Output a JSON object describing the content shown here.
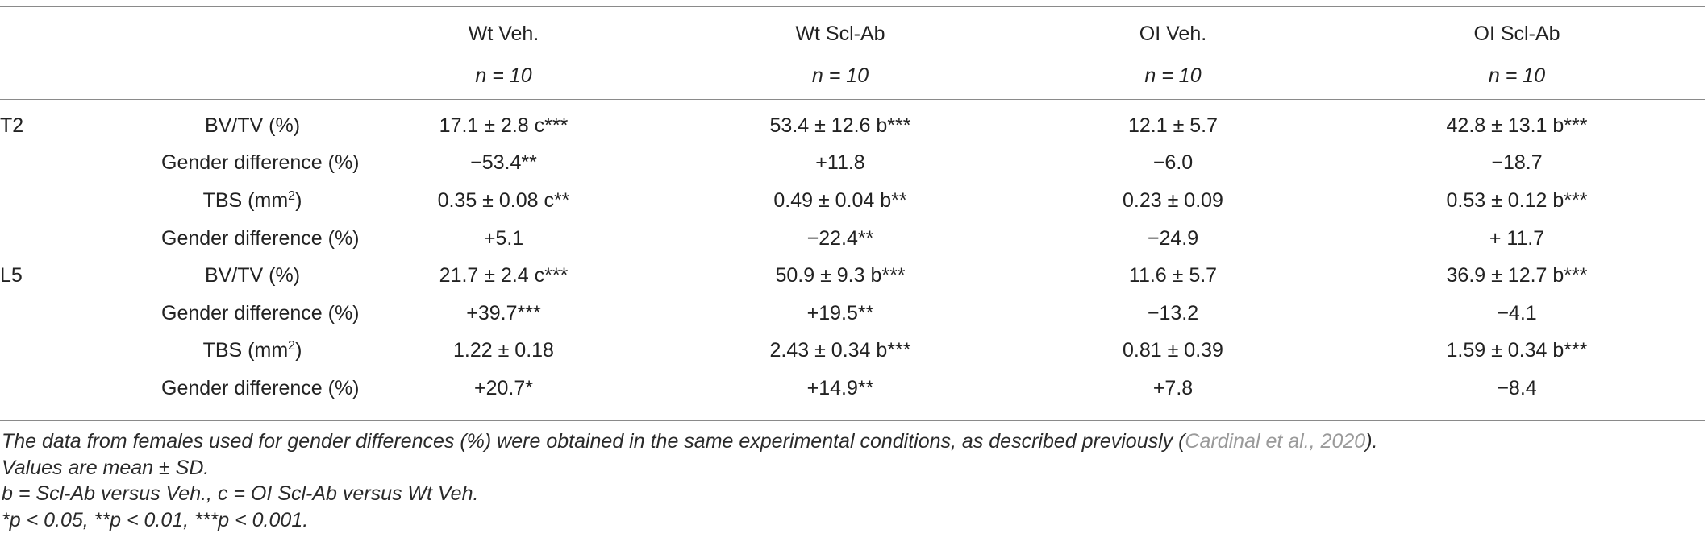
{
  "header": {
    "groups": [
      "Wt Veh.",
      "Wt Scl-Ab",
      "OI Veh.",
      "OI Scl-Ab"
    ],
    "n_labels": [
      "n = 10",
      "n = 10",
      "n = 10",
      "n = 10"
    ]
  },
  "rows": [
    {
      "group": "T2",
      "param": "BV/TV (%)",
      "param_sup": "",
      "param_after": "",
      "values": [
        "17.1 ± 2.8 c***",
        "53.4 ± 12.6 b***",
        "12.1 ± 5.7",
        "42.8 ± 13.1 b***"
      ]
    },
    {
      "group": "",
      "param": "Gender difference (%)",
      "param_sup": "",
      "param_after": "",
      "values": [
        "−53.4**",
        "+11.8",
        "−6.0",
        "−18.7"
      ]
    },
    {
      "group": "",
      "param": "TBS (mm",
      "param_sup": "2",
      "param_after": ")",
      "values": [
        "0.35 ± 0.08 c**",
        "0.49 ± 0.04 b**",
        "0.23 ± 0.09",
        "0.53 ± 0.12 b***"
      ]
    },
    {
      "group": "",
      "param": "Gender difference (%)",
      "param_sup": "",
      "param_after": "",
      "values": [
        "+5.1",
        "−22.4**",
        "−24.9",
        "+ 11.7"
      ]
    },
    {
      "group": "L5",
      "param": "BV/TV (%)",
      "param_sup": "",
      "param_after": "",
      "values": [
        "21.7 ± 2.4 c***",
        "50.9 ± 9.3 b***",
        "11.6 ± 5.7",
        "36.9 ± 12.7 b***"
      ]
    },
    {
      "group": "",
      "param": "Gender difference (%)",
      "param_sup": "",
      "param_after": "",
      "values": [
        "+39.7***",
        "+19.5**",
        "−13.2",
        "−4.1"
      ]
    },
    {
      "group": "",
      "param": "TBS (mm",
      "param_sup": "2",
      "param_after": ")",
      "values": [
        "1.22 ± 0.18",
        "2.43 ± 0.34 b***",
        "0.81 ± 0.39",
        "1.59 ± 0.34 b***"
      ]
    },
    {
      "group": "",
      "param": "Gender difference (%)",
      "param_sup": "",
      "param_after": "",
      "values": [
        "+20.7*",
        "+14.9**",
        "+7.8",
        "−8.4"
      ]
    }
  ],
  "footnotes": {
    "line1_text": "The data from females used for gender differences (%) were obtained in the same experimental conditions, as described previously (",
    "line1_cite": "Cardinal et al., 2020",
    "line1_end": ").",
    "line2": "Values are mean ± SD.",
    "line3": "b = Scl-Ab versus Veh., c = OI Scl-Ab versus Wt Veh.",
    "line4": "*p < 0.05, **p < 0.01, ***p < 0.001."
  }
}
